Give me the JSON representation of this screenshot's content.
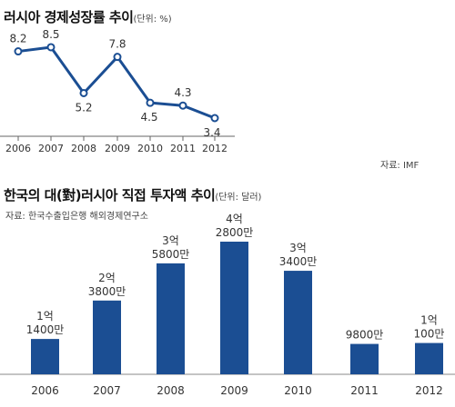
{
  "chart_data": [
    {
      "type": "line",
      "title": "러시아 경제성장률 추이",
      "unit": "(단위: %)",
      "source": "자료: IMF",
      "categories": [
        "2006",
        "2007",
        "2008",
        "2009",
        "2010",
        "2011",
        "2012"
      ],
      "values": [
        8.2,
        8.5,
        5.2,
        7.8,
        4.5,
        4.3,
        3.4
      ],
      "labels": [
        "8.2",
        "8.5",
        "5.2",
        "7.8",
        "4.5",
        "4.3",
        "3.4"
      ],
      "color": "#1b4e93"
    },
    {
      "type": "bar",
      "title": "한국의 대(對)러시아 직접 투자액 추이",
      "unit": "(단위: 달러)",
      "source": "자료: 한국수출입은행 해외경제연구소",
      "categories": [
        "2006",
        "2007",
        "2008",
        "2009",
        "2010",
        "2011",
        "2012"
      ],
      "values": [
        114000000,
        238000000,
        358000000,
        428000000,
        334000000,
        98000000,
        101000000
      ],
      "labels": [
        [
          "1억",
          "1400만"
        ],
        [
          "2억",
          "3800만"
        ],
        [
          "3억",
          "5800만"
        ],
        [
          "4억",
          "2800만"
        ],
        [
          "3억",
          "3400만"
        ],
        [
          "9800만"
        ],
        [
          "1억",
          "100만"
        ]
      ],
      "color": "#1b4e93"
    }
  ]
}
